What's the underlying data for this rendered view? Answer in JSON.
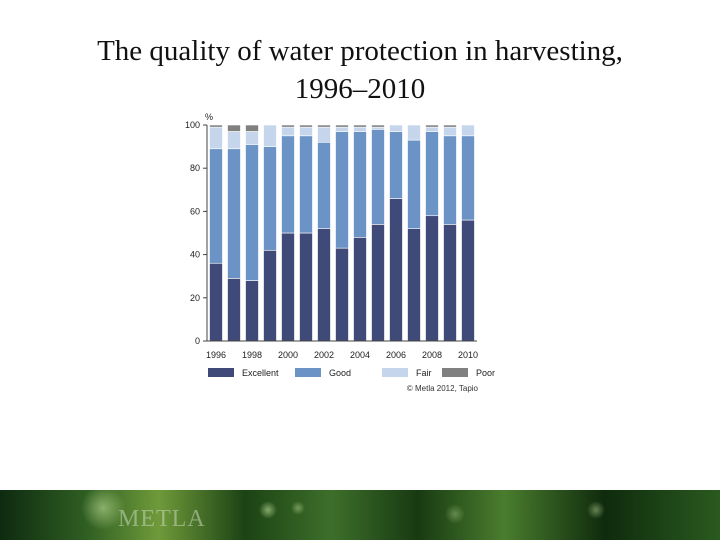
{
  "slide": {
    "title_line1": "The quality of water protection in harvesting,",
    "title_line2": "1996–2010",
    "footer_logo": "METLA"
  },
  "chart_data": {
    "type": "bar",
    "stacked": true,
    "unit_label": "%",
    "ylim": [
      0,
      100
    ],
    "yticks": [
      0,
      20,
      40,
      60,
      80,
      100
    ],
    "categories": [
      "1996",
      "1997",
      "1998",
      "1999",
      "2000",
      "2001",
      "2002",
      "2003",
      "2004",
      "2005",
      "2006",
      "2007",
      "2008",
      "2009",
      "2010"
    ],
    "xtick_labels": [
      "1996",
      "",
      "1998",
      "",
      "2000",
      "",
      "2002",
      "",
      "2004",
      "",
      "2006",
      "",
      "2008",
      "",
      "2010"
    ],
    "series": [
      {
        "name": "Excellent",
        "color": "#3f4a78",
        "values": [
          36,
          29,
          28,
          42,
          50,
          50,
          52,
          43,
          48,
          54,
          66,
          52,
          58,
          54,
          56
        ]
      },
      {
        "name": "Good",
        "color": "#6b93c6",
        "values": [
          53,
          60,
          63,
          48,
          45,
          45,
          40,
          54,
          49,
          44,
          31,
          41,
          39,
          41,
          39
        ]
      },
      {
        "name": "Fair",
        "color": "#c5d6ec",
        "values": [
          10,
          8,
          6,
          10,
          4,
          4,
          7,
          2,
          2,
          1,
          3,
          7,
          2,
          4,
          5
        ]
      },
      {
        "name": "Poor",
        "color": "#808080",
        "values": [
          1,
          3,
          3,
          0,
          1,
          1,
          1,
          1,
          1,
          1,
          0,
          0,
          1,
          1,
          0
        ]
      }
    ],
    "grid": false,
    "legend_position": "bottom",
    "source": "© Metla 2012, Tapio"
  }
}
